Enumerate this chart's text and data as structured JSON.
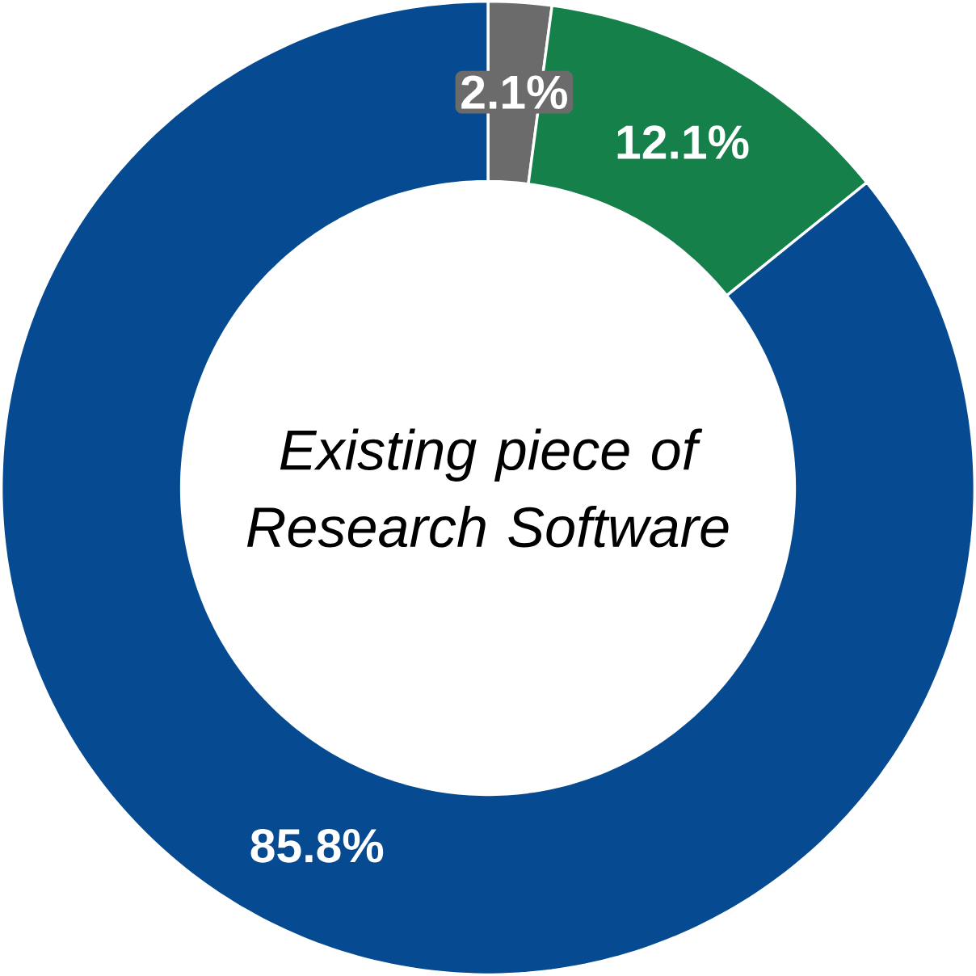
{
  "chart_data": {
    "type": "donut",
    "title": "Existing piece of Research Software",
    "categories": [
      null,
      null,
      null
    ],
    "values": [
      2.1,
      12.1,
      85.8
    ],
    "colors": [
      "#6b6b6b",
      "#16804b",
      "#064b91"
    ],
    "value_labels": [
      "2.1%",
      "12.1%",
      "85.8%"
    ]
  }
}
